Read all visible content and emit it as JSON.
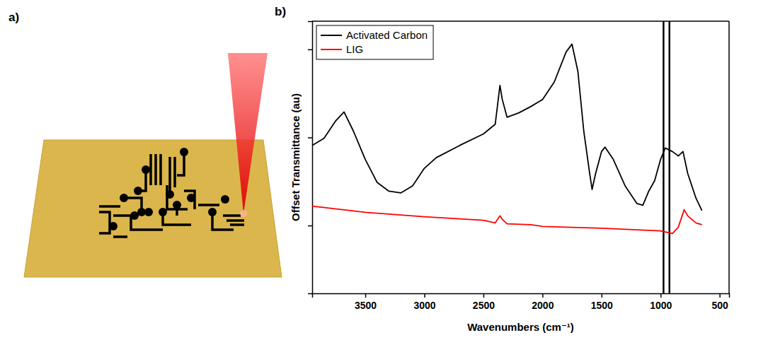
{
  "panel_labels": [
    "a)",
    "b)"
  ],
  "chart_data": {
    "type": "line",
    "x_label": "Wavenumbers (cm⁻¹)",
    "y_label": "Offset Transmittance (au)",
    "xlim": [
      3950,
      420
    ],
    "xticks": [
      3500,
      3000,
      2500,
      2000,
      1500,
      1000,
      500
    ],
    "ylim": [
      0.23,
      3.32
    ],
    "yticks": [
      1,
      2,
      3
    ],
    "tick_labels": "x",
    "legend": "upper left",
    "vlines": [
      975,
      925
    ],
    "series": [
      {
        "name": "Activated Carbon",
        "color": "#000000",
        "x": [
          3950,
          3850,
          3750,
          3680,
          3600,
          3500,
          3400,
          3300,
          3200,
          3100,
          3000,
          2900,
          2700,
          2500,
          2400,
          2360,
          2340,
          2300,
          2200,
          2100,
          2000,
          1900,
          1800,
          1750,
          1700,
          1650,
          1600,
          1580,
          1550,
          1500,
          1470,
          1400,
          1300,
          1200,
          1150,
          1100,
          1050,
          1000,
          960,
          900,
          850,
          810,
          770,
          700,
          650
        ],
        "values": [
          1.91,
          1.99,
          2.19,
          2.29,
          2.07,
          1.75,
          1.49,
          1.39,
          1.37,
          1.45,
          1.65,
          1.77,
          1.91,
          2.04,
          2.15,
          2.59,
          2.43,
          2.23,
          2.28,
          2.35,
          2.43,
          2.63,
          2.97,
          3.06,
          2.75,
          2.07,
          1.59,
          1.41,
          1.59,
          1.84,
          1.89,
          1.75,
          1.45,
          1.25,
          1.23,
          1.39,
          1.51,
          1.75,
          1.88,
          1.84,
          1.79,
          1.84,
          1.59,
          1.31,
          1.17
        ]
      },
      {
        "name": "LIG",
        "color": "#ff0000",
        "x": [
          3950,
          3500,
          3000,
          2500,
          2400,
          2360,
          2340,
          2300,
          2100,
          2000,
          1500,
          1000,
          900,
          850,
          800,
          770,
          700,
          650
        ],
        "values": [
          1.22,
          1.15,
          1.1,
          1.06,
          1.03,
          1.11,
          1.07,
          1.02,
          1.01,
          0.99,
          0.97,
          0.94,
          0.91,
          0.98,
          1.18,
          1.11,
          1.03,
          1.01
        ]
      }
    ]
  }
}
